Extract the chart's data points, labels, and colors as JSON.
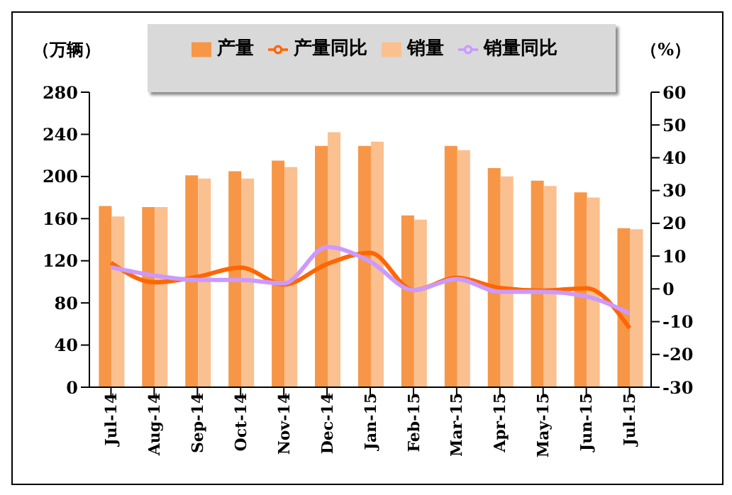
{
  "chart_data": {
    "type": "bar",
    "ylabel": "（万辆）",
    "y2label": "（%）",
    "categories": [
      "Jul-14",
      "Aug-14",
      "Sep-14",
      "Oct-14",
      "Nov-14",
      "Dec-14",
      "Jan-15",
      "Feb-15",
      "Mar-15",
      "Apr-15",
      "May-15",
      "Jun-15",
      "Jul-15"
    ],
    "series": [
      {
        "name": "产量",
        "color": "#f79646",
        "values": [
          172,
          171,
          201,
          205,
          215,
          229,
          229,
          163,
          229,
          208,
          196,
          185,
          151
        ]
      },
      {
        "name": "销量",
        "color": "#fac090",
        "values": [
          162,
          171,
          198,
          198,
          209,
          242,
          233,
          159,
          225,
          200,
          191,
          180,
          150
        ]
      },
      {
        "name": "产量同比",
        "type": "line",
        "axis": "y2",
        "color": "#ff6600",
        "values": [
          8,
          2,
          3.7,
          6.5,
          1.3,
          7.6,
          11,
          -0.4,
          3.4,
          0.3,
          -0.5,
          0.2,
          -12
        ]
      },
      {
        "name": "销量同比",
        "type": "line",
        "axis": "y2",
        "color": "#cc99ff",
        "values": [
          6.6,
          4.1,
          2.7,
          2.7,
          1.7,
          12.8,
          8.3,
          -0.4,
          3,
          -0.9,
          -0.9,
          -2.3,
          -7.5
        ]
      }
    ],
    "ylim": [
      0,
      280
    ],
    "yticks": [
      0,
      40,
      80,
      120,
      160,
      200,
      240,
      280
    ],
    "y2lim": [
      -30,
      60
    ],
    "y2ticks": [
      -30,
      -20,
      -10,
      0,
      10,
      20,
      30,
      40,
      50,
      60
    ],
    "grid": false,
    "legend": "top"
  }
}
